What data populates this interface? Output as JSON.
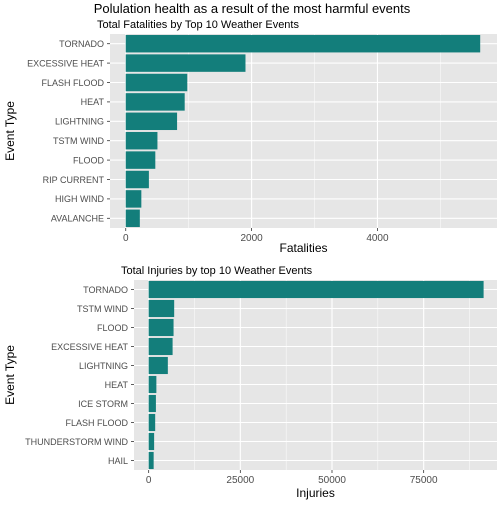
{
  "page_title": "Polulation health as a result of the most harmful events",
  "colors": {
    "bar": "#137E7B",
    "panel": "#E6E6E6",
    "grid": "#FFFFFF",
    "text": "#000000",
    "tick": "#4D4D4D"
  },
  "chart_data": [
    {
      "type": "bar",
      "orientation": "horizontal",
      "title": "Total Fatalities by Top 10 Weather Events",
      "xlabel": "Fatalities",
      "ylabel": "Event Type",
      "categories": [
        "TORNADO",
        "EXCESSIVE HEAT",
        "FLASH FLOOD",
        "HEAT",
        "LIGHTNING",
        "TSTM WIND",
        "FLOOD",
        "RIP CURRENT",
        "HIGH WIND",
        "AVALANCHE"
      ],
      "values": [
        5633,
        1903,
        978,
        937,
        816,
        504,
        470,
        368,
        248,
        224
      ],
      "xlim": [
        -250,
        5900
      ],
      "xticks": [
        0,
        2000,
        4000
      ],
      "xtick_labels": [
        "0",
        "2000",
        "4000"
      ],
      "grid": true,
      "legend": "none"
    },
    {
      "type": "bar",
      "orientation": "horizontal",
      "title": "Total Injuries by top 10 Weather Events",
      "xlabel": "Injuries",
      "ylabel": "Event Type",
      "categories": [
        "TORNADO",
        "TSTM WIND",
        "FLOOD",
        "EXCESSIVE HEAT",
        "LIGHTNING",
        "HEAT",
        "ICE STORM",
        "FLASH FLOOD",
        "THUNDERSTORM WIND",
        "HAIL"
      ],
      "values": [
        91346,
        6957,
        6789,
        6525,
        5230,
        2100,
        1975,
        1777,
        1488,
        1361
      ],
      "xlim": [
        -4000,
        95000
      ],
      "xticks": [
        0,
        25000,
        50000,
        75000
      ],
      "xtick_labels": [
        "0",
        "25000",
        "50000",
        "75000"
      ],
      "grid": true,
      "legend": "none"
    }
  ]
}
